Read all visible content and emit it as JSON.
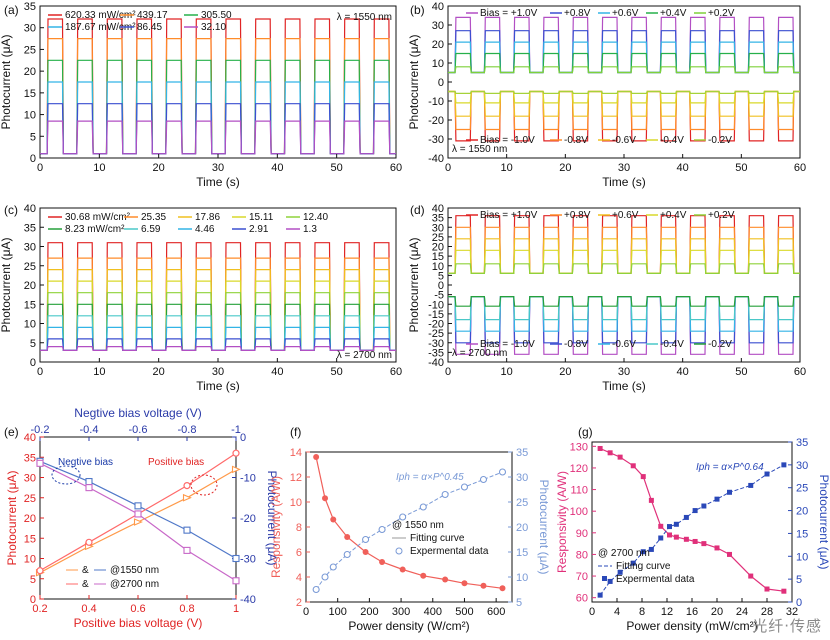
{
  "watermark": "光纤·传感",
  "chart_data": [
    {
      "type": "line",
      "panel": "(a)",
      "xlabel": "Time (s)",
      "ylabel": "Photocurrent (μA)",
      "xlim": [
        0,
        60
      ],
      "ylim": [
        0,
        35
      ],
      "xticks": [
        0,
        10,
        20,
        30,
        40,
        50,
        60
      ],
      "yticks": [
        0,
        5,
        10,
        15,
        20,
        25,
        30,
        35
      ],
      "annotation": "λ = 1550 nm",
      "waveform": "pulse",
      "period_s": 5,
      "on_fraction": 0.55,
      "series": [
        {
          "name": "620.33 mW/cm²",
          "color": "#e02424",
          "on_value": 32,
          "off_value": 1
        },
        {
          "name": "439.17",
          "color": "#ff8c2a",
          "on_value": 27.5,
          "off_value": 1
        },
        {
          "name": "305.50",
          "color": "#26b04a",
          "on_value": 22.5,
          "off_value": 1
        },
        {
          "name": "187.67 mW/cm²",
          "color": "#33b4e6",
          "on_value": 17.5,
          "off_value": 1
        },
        {
          "name": "86.45",
          "color": "#3a4fd0",
          "on_value": 12.5,
          "off_value": 1
        },
        {
          "name": "32.10",
          "color": "#b24fc4",
          "on_value": 8.5,
          "off_value": 1
        }
      ]
    },
    {
      "type": "line",
      "panel": "(b)",
      "xlabel": "Time (s)",
      "ylabel": "Photocurrent (μA)",
      "xlim": [
        0,
        60
      ],
      "ylim": [
        -40,
        40
      ],
      "xticks": [
        0,
        10,
        20,
        30,
        40,
        50,
        60
      ],
      "yticks": [
        -40,
        -30,
        -20,
        -10,
        0,
        10,
        20,
        30,
        40
      ],
      "annotation": "λ = 1550 nm",
      "waveform": "pulse",
      "period_s": 5,
      "on_fraction": 0.55,
      "series": [
        {
          "name": "Bias = +1.0V",
          "color": "#b24fc4",
          "on_value": 34,
          "off_value": 5
        },
        {
          "name": "+0.8V",
          "color": "#3a4fd0",
          "on_value": 27,
          "off_value": 5
        },
        {
          "name": "+0.6V",
          "color": "#33b4e6",
          "on_value": 21,
          "off_value": 5
        },
        {
          "name": "+0.4V",
          "color": "#26b04a",
          "on_value": 15,
          "off_value": 5
        },
        {
          "name": "+0.2V",
          "color": "#7fd13a",
          "on_value": 8,
          "off_value": 5
        },
        {
          "name": "Bias = -1.0V",
          "color": "#e02424",
          "on_value": -31,
          "off_value": -5
        },
        {
          "name": "-0.8V",
          "color": "#ff8c2a",
          "on_value": -25,
          "off_value": -5
        },
        {
          "name": "-0.6V",
          "color": "#f0c020",
          "on_value": -18,
          "off_value": -5
        },
        {
          "name": "-0.4V",
          "color": "#d9d92a",
          "on_value": -11,
          "off_value": -5
        },
        {
          "name": "-0.2V",
          "color": "#a6d23a",
          "on_value": -6,
          "off_value": -5
        }
      ]
    },
    {
      "type": "line",
      "panel": "(c)",
      "xlabel": "Time (s)",
      "ylabel": "Photocurrent (μA)",
      "xlim": [
        0,
        60
      ],
      "ylim": [
        0,
        40
      ],
      "xticks": [
        0,
        10,
        20,
        30,
        40,
        50,
        60
      ],
      "yticks": [
        0,
        5,
        10,
        15,
        20,
        25,
        30,
        35,
        40
      ],
      "annotation": "λ = 2700 nm",
      "waveform": "pulse",
      "period_s": 5,
      "on_fraction": 0.55,
      "series": [
        {
          "name": "30.68 mW/cm²",
          "color": "#e02424",
          "on_value": 31,
          "off_value": 3
        },
        {
          "name": "25.35",
          "color": "#ff8c2a",
          "on_value": 27,
          "off_value": 3
        },
        {
          "name": "17.86",
          "color": "#f0c020",
          "on_value": 24,
          "off_value": 3
        },
        {
          "name": "15.11",
          "color": "#d9d92a",
          "on_value": 21,
          "off_value": 3
        },
        {
          "name": "12.40",
          "color": "#8fd23a",
          "on_value": 18,
          "off_value": 3
        },
        {
          "name": "8.23 mW/cm²",
          "color": "#26a03a",
          "on_value": 15,
          "off_value": 3
        },
        {
          "name": "6.59",
          "color": "#4ac8c8",
          "on_value": 12,
          "off_value": 3
        },
        {
          "name": "4.46",
          "color": "#33b4e6",
          "on_value": 9,
          "off_value": 3
        },
        {
          "name": "2.91",
          "color": "#3a4fd0",
          "on_value": 6,
          "off_value": 3
        },
        {
          "name": "1.3",
          "color": "#b24fc4",
          "on_value": 4,
          "off_value": 3
        }
      ]
    },
    {
      "type": "line",
      "panel": "(d)",
      "xlabel": "Time (s)",
      "ylabel": "Photocurrent (μA)",
      "xlim": [
        0,
        60
      ],
      "ylim": [
        -40,
        40
      ],
      "xticks": [
        0,
        10,
        20,
        30,
        40,
        50,
        60
      ],
      "yticks": [
        -40,
        -35,
        -30,
        -25,
        -20,
        -15,
        -10,
        -5,
        0,
        5,
        10,
        15,
        20,
        25,
        30,
        35,
        40
      ],
      "annotation": "λ = 2700 nm",
      "waveform": "pulse",
      "period_s": 5,
      "on_fraction": 0.55,
      "series": [
        {
          "name": "Bias = +1.0V",
          "color": "#e02424",
          "on_value": 36,
          "off_value": 6
        },
        {
          "name": "+0.8V",
          "color": "#ff8c2a",
          "on_value": 30,
          "off_value": 6
        },
        {
          "name": "+0.6V",
          "color": "#f0c020",
          "on_value": 24,
          "off_value": 6
        },
        {
          "name": "+0.4V",
          "color": "#d9d92a",
          "on_value": 18,
          "off_value": 6
        },
        {
          "name": "+0.2V",
          "color": "#8fd23a",
          "on_value": 11,
          "off_value": 6
        },
        {
          "name": "Bias = -1.0V",
          "color": "#b24fc4",
          "on_value": -36,
          "off_value": -6
        },
        {
          "name": "-0.8V",
          "color": "#3a4fd0",
          "on_value": -30,
          "off_value": -6
        },
        {
          "name": "-0.6V",
          "color": "#33b4e6",
          "on_value": -24,
          "off_value": -6
        },
        {
          "name": "-0.4V",
          "color": "#4ac8c8",
          "on_value": -18,
          "off_value": -6
        },
        {
          "name": "-0.2V",
          "color": "#26a03a",
          "on_value": -11,
          "off_value": -6
        }
      ]
    },
    {
      "type": "line",
      "panel": "(e)",
      "xlabel": "Positive bias voltage (V)",
      "x2label": "Negtive bias voltage (V)",
      "ylabel": "Photocurrent (μA)",
      "y2label": "Photocurrent (μA)",
      "xlim": [
        0.2,
        1.0
      ],
      "x2lim": [
        -0.2,
        -1.0
      ],
      "ylim": [
        0,
        40
      ],
      "y2lim": [
        -40,
        0
      ],
      "xticks": [
        0.2,
        0.4,
        0.6,
        0.8,
        1.0
      ],
      "x2ticks": [
        -0.2,
        -0.4,
        -0.6,
        -0.8,
        -1.0
      ],
      "yticks": [
        0,
        5,
        10,
        15,
        20,
        25,
        30,
        35,
        40
      ],
      "y2ticks": [
        -40,
        -30,
        -20,
        -10,
        0
      ],
      "annotations": [
        "Negtive bias",
        "Positive bias"
      ],
      "legend": [
        "&",
        "@1550 nm",
        "&",
        "@2700 nm"
      ],
      "series": [
        {
          "name": "@1550 nm positive",
          "axis": "bottom-left",
          "color": "#ff9a4a",
          "x": [
            0.2,
            0.4,
            0.6,
            0.8,
            1.0
          ],
          "y": [
            6.5,
            13,
            19,
            25,
            32
          ]
        },
        {
          "name": "@1550 nm negative",
          "axis": "top-right",
          "color": "#5078c8",
          "x": [
            -0.2,
            -0.4,
            -0.6,
            -0.8,
            -1.0
          ],
          "y": [
            -6,
            -11,
            -17,
            -23,
            -30
          ]
        },
        {
          "name": "@2700 nm positive",
          "axis": "bottom-left",
          "color": "#ff6a6a",
          "x": [
            0.2,
            0.4,
            0.6,
            0.8,
            1.0
          ],
          "y": [
            7,
            14,
            21,
            28,
            36
          ]
        },
        {
          "name": "@2700 nm negative",
          "axis": "top-right",
          "color": "#c868c8",
          "x": [
            -0.2,
            -0.4,
            -0.6,
            -0.8,
            -1.0
          ],
          "y": [
            -6.5,
            -12.5,
            -19,
            -28,
            -35.5
          ]
        }
      ]
    },
    {
      "type": "scatter",
      "panel": "(f)",
      "xlabel": "Power density (W/cm²)",
      "ylabel": "Responsivity (A/W)",
      "y2label": "Photocurrent (μA)",
      "xlim": [
        0,
        650
      ],
      "ylim": [
        2,
        14
      ],
      "y2lim": [
        5,
        35
      ],
      "xticks": [
        0,
        100,
        200,
        300,
        400,
        500,
        600
      ],
      "yticks": [
        2,
        4,
        6,
        8,
        10,
        12,
        14
      ],
      "y2ticks": [
        5,
        10,
        15,
        20,
        25,
        30,
        35
      ],
      "annotations": [
        "@ 1550 nm",
        "Iph = α×P^0.45"
      ],
      "legend": [
        "Fitting curve",
        "Expermental data"
      ],
      "series": [
        {
          "name": "Responsivity",
          "axis": "left",
          "color": "#f0605a",
          "x": [
            32,
            60,
            86,
            130,
            188,
            240,
            305,
            370,
            439,
            500,
            560,
            620
          ],
          "y": [
            13.6,
            10.3,
            8.6,
            7.2,
            6.0,
            5.2,
            4.6,
            4.1,
            3.8,
            3.5,
            3.3,
            3.1
          ]
        },
        {
          "name": "Photocurrent",
          "axis": "right",
          "color": "#7a9ad6",
          "x": [
            32,
            60,
            86,
            130,
            188,
            240,
            305,
            370,
            439,
            500,
            560,
            620
          ],
          "y": [
            7.5,
            10,
            12,
            14.5,
            17.5,
            19.5,
            22,
            24,
            26.5,
            28,
            29.5,
            31
          ]
        }
      ]
    },
    {
      "type": "scatter",
      "panel": "(g)",
      "xlabel": "Power density (mW/cm²)",
      "ylabel": "Responsivity (A/W)",
      "y2label": "Photocurrent (μA)",
      "xlim": [
        0,
        32
      ],
      "ylim": [
        58,
        132
      ],
      "y2lim": [
        0,
        35
      ],
      "xticks": [
        0,
        4,
        8,
        12,
        16,
        20,
        24,
        28,
        32
      ],
      "yticks": [
        60,
        70,
        80,
        90,
        100,
        110,
        120,
        130
      ],
      "y2ticks": [
        0,
        5,
        10,
        15,
        20,
        25,
        30,
        35
      ],
      "annotations": [
        "@ 2700 nm",
        "Iph = α×P^0.64"
      ],
      "legend": [
        "Fitting curve",
        "Expermental data"
      ],
      "series": [
        {
          "name": "Responsivity",
          "axis": "left",
          "color": "#e0307a",
          "x": [
            1.3,
            2.9,
            4.5,
            6.6,
            8.2,
            9.5,
            11,
            12.4,
            13.5,
            15.1,
            16.5,
            17.9,
            20,
            22,
            25.4,
            28,
            30.7
          ],
          "y": [
            129,
            127,
            125,
            121,
            116,
            105,
            93,
            89,
            88,
            87,
            86,
            85,
            83,
            80,
            70,
            64,
            63
          ]
        },
        {
          "name": "Photocurrent",
          "axis": "right",
          "color": "#2a48b8",
          "x": [
            1.3,
            2.9,
            4.5,
            6.6,
            8.2,
            9.5,
            11,
            12.4,
            13.5,
            15.1,
            16.5,
            17.9,
            20,
            22,
            25.4,
            28,
            30.7
          ],
          "y": [
            1.5,
            4.5,
            6.5,
            8.5,
            11,
            11.5,
            14,
            16.5,
            17,
            18.5,
            20,
            21,
            22.5,
            24,
            25.5,
            28,
            30
          ]
        }
      ]
    }
  ]
}
